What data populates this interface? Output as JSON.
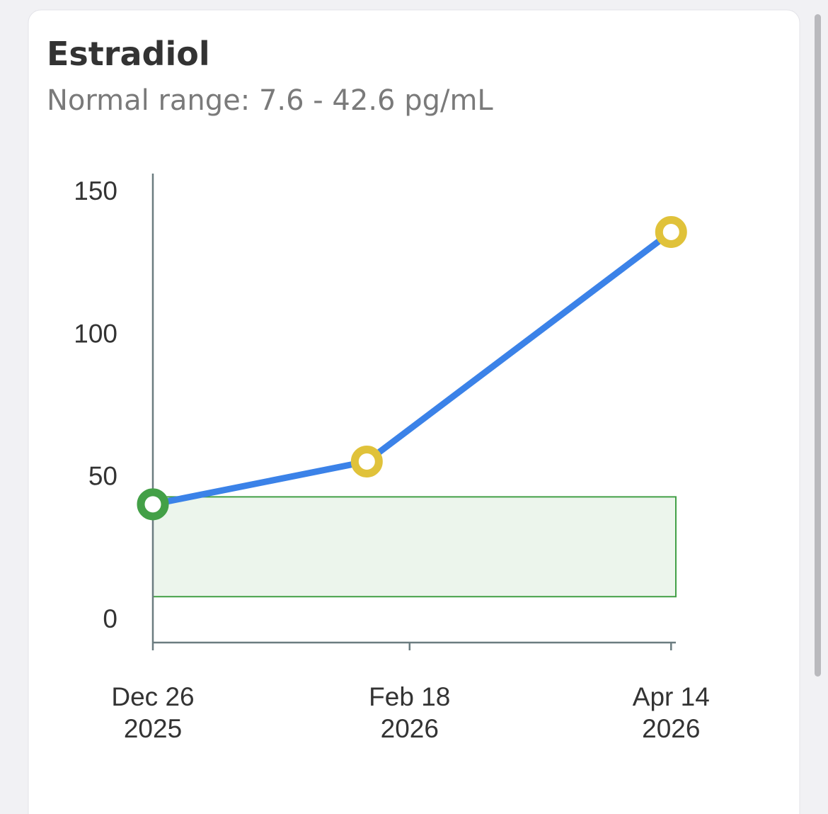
{
  "chart_data": {
    "type": "line",
    "title": "Estradiol",
    "subtitle": "Normal range: 7.6 - 42.6 pg/mL",
    "normal_range": {
      "low": 7.6,
      "high": 42.6,
      "color": "#43a047"
    },
    "x": [
      "2025-12-26",
      "2026-02-09",
      "2026-04-14"
    ],
    "series": [
      {
        "color": "#3b82e8",
        "values": [
          40,
          55,
          135.5
        ],
        "point_colors": [
          "#43a047",
          "#e0c23a",
          "#e0c23a"
        ]
      }
    ],
    "xlim": [
      "2025-12-26",
      "2026-04-15"
    ],
    "xticks": [
      {
        "value": "2025-12-26",
        "label": "Dec 26 2025"
      },
      {
        "value": "2026-02-18",
        "label": "Feb 18 2026"
      },
      {
        "value": "2026-04-14",
        "label": "Apr 14 2026"
      }
    ],
    "ylim": [
      -8.5,
      156
    ],
    "yticks": [
      0,
      50,
      100,
      150
    ]
  }
}
